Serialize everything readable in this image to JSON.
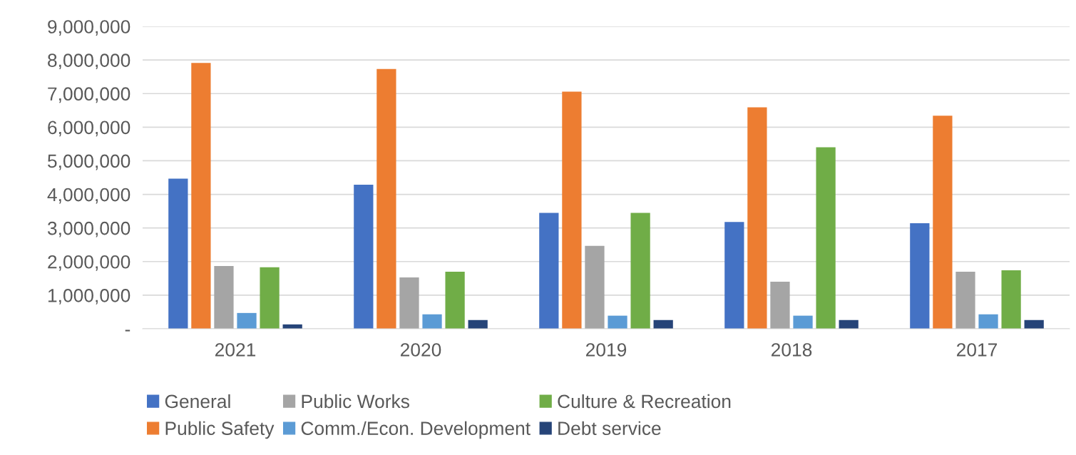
{
  "chart_data": {
    "type": "bar",
    "categories": [
      "2021",
      "2020",
      "2019",
      "2018",
      "2017"
    ],
    "series": [
      {
        "name": "General",
        "color": "#4472c4",
        "values": [
          4470000,
          4290000,
          3450000,
          3180000,
          3140000
        ]
      },
      {
        "name": "Public Safety",
        "color": "#ed7d31",
        "values": [
          7910000,
          7730000,
          7060000,
          6590000,
          6340000
        ]
      },
      {
        "name": "Public Works",
        "color": "#a5a5a5",
        "values": [
          1870000,
          1530000,
          2470000,
          1400000,
          1700000
        ]
      },
      {
        "name": "Comm./Econ. Development",
        "color": "#5b9bd5",
        "values": [
          470000,
          430000,
          390000,
          390000,
          430000
        ]
      },
      {
        "name": "Culture & Recreation",
        "color": "#70ad47",
        "values": [
          1830000,
          1700000,
          3450000,
          5400000,
          1740000
        ]
      },
      {
        "name": "Debt service",
        "color": "#264478",
        "values": [
          130000,
          260000,
          260000,
          260000,
          260000
        ]
      }
    ],
    "ylim": [
      0,
      9000000
    ],
    "yticks": [
      {
        "value": 0,
        "label": "-"
      },
      {
        "value": 1000000,
        "label": "1,000,000"
      },
      {
        "value": 2000000,
        "label": "2,000,000"
      },
      {
        "value": 3000000,
        "label": "3,000,000"
      },
      {
        "value": 4000000,
        "label": "4,000,000"
      },
      {
        "value": 5000000,
        "label": "5,000,000"
      },
      {
        "value": 6000000,
        "label": "6,000,000"
      },
      {
        "value": 7000000,
        "label": "7,000,000"
      },
      {
        "value": 8000000,
        "label": "8,000,000"
      },
      {
        "value": 9000000,
        "label": "9,000,000"
      }
    ],
    "grid": "y",
    "legend": "bottom"
  }
}
